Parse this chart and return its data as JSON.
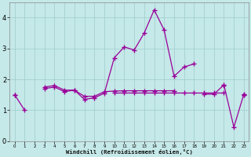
{
  "bg_color": "#c5e8e8",
  "line_color": "#990099",
  "grid_color": "#a0cccc",
  "xlabel": "Windchill (Refroidissement éolien,°C)",
  "ylim": [
    0,
    4.5
  ],
  "xlim": [
    -0.5,
    23.5
  ],
  "yticks": [
    0,
    1,
    2,
    3,
    4
  ],
  "xticks": [
    0,
    1,
    2,
    3,
    4,
    5,
    6,
    7,
    8,
    9,
    10,
    11,
    12,
    13,
    14,
    15,
    16,
    17,
    18,
    19,
    20,
    21,
    22,
    23
  ],
  "x": [
    0,
    1,
    2,
    3,
    4,
    5,
    6,
    7,
    8,
    9,
    10,
    11,
    12,
    13,
    14,
    15,
    16,
    17,
    18,
    19,
    20,
    21,
    22,
    23
  ],
  "line1": [
    1.5,
    1.0,
    null,
    1.7,
    1.75,
    1.6,
    1.65,
    1.35,
    1.4,
    1.55,
    2.7,
    3.05,
    2.95,
    3.5,
    4.25,
    3.6,
    2.1,
    2.4,
    2.5,
    null,
    null,
    1.8,
    null,
    1.5
  ],
  "line2": [
    1.5,
    null,
    null,
    1.75,
    1.8,
    1.65,
    1.65,
    1.45,
    1.45,
    1.6,
    1.62,
    1.63,
    1.63,
    1.63,
    1.63,
    1.63,
    1.63,
    null,
    null,
    null,
    null,
    null,
    null,
    null
  ],
  "line3": [
    null,
    null,
    null,
    null,
    null,
    null,
    null,
    null,
    null,
    null,
    1.58,
    1.58,
    1.58,
    1.58,
    1.58,
    1.58,
    1.58,
    1.58,
    1.58,
    1.58,
    1.58,
    1.58,
    null,
    1.5
  ],
  "line4": [
    null,
    null,
    null,
    null,
    null,
    null,
    null,
    null,
    null,
    null,
    null,
    null,
    null,
    null,
    null,
    null,
    null,
    null,
    null,
    1.52,
    1.52,
    1.82,
    0.45,
    1.52
  ]
}
